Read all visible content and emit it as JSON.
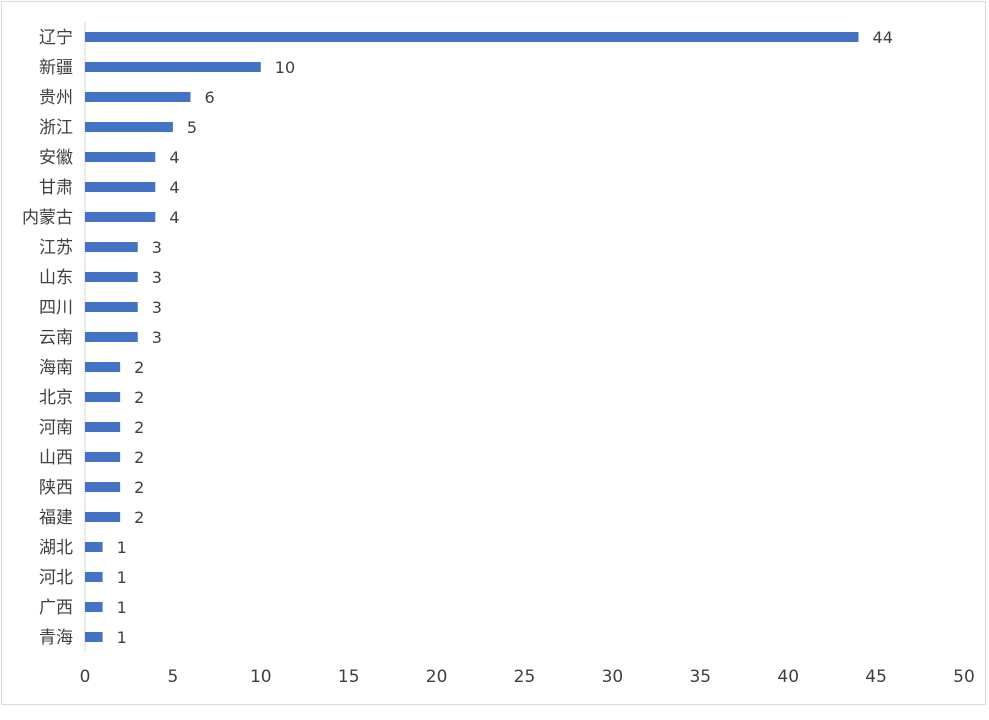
{
  "chart_data": {
    "type": "bar",
    "orientation": "horizontal",
    "title": "",
    "xlabel": "",
    "ylabel": "",
    "xlim": [
      0,
      50
    ],
    "x_ticks": [
      0,
      5,
      10,
      15,
      20,
      25,
      30,
      35,
      40,
      45,
      50
    ],
    "grid": false,
    "legend": "none",
    "bar_color": "#4472c4",
    "categories": [
      "辽宁",
      "新疆",
      "贵州",
      "浙江",
      "安徽",
      "甘肃",
      "内蒙古",
      "江苏",
      "山东",
      "四川",
      "云南",
      "海南",
      "北京",
      "河南",
      "山西",
      "陕西",
      "福建",
      "湖北",
      "河北",
      "广西",
      "青海"
    ],
    "values": [
      44,
      10,
      6,
      5,
      4,
      4,
      4,
      3,
      3,
      3,
      3,
      2,
      2,
      2,
      2,
      2,
      2,
      1,
      1,
      1,
      1
    ]
  }
}
